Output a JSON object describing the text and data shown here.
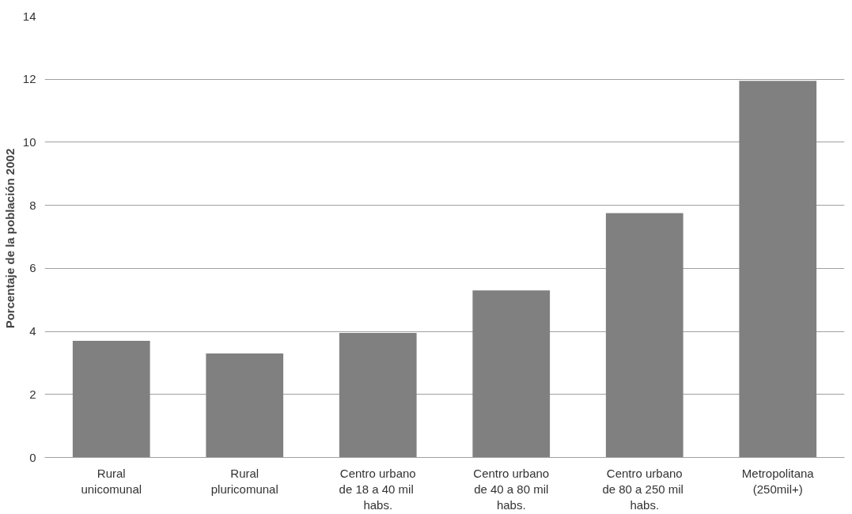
{
  "chart_data": {
    "type": "bar",
    "ylabel": "Porcentaje de la población  2002",
    "categories": [
      "Rural\nunicomunal",
      "Rural\npluricomunal",
      "Centro urbano\nde 18  a 40 mil\nhabs.",
      "Centro urbano\nde 40 a 80 mil\nhabs.",
      "Centro urbano\nde 80  a 250 mil\nhabs.",
      "Metropolitana\n(250mil+)"
    ],
    "values": [
      3.7,
      3.3,
      3.95,
      5.3,
      7.75,
      11.95
    ],
    "color": "#808080",
    "ylim": [
      0,
      14
    ],
    "yticks": [
      0,
      2,
      4,
      6,
      8,
      10,
      12,
      14
    ],
    "grid": "y"
  }
}
